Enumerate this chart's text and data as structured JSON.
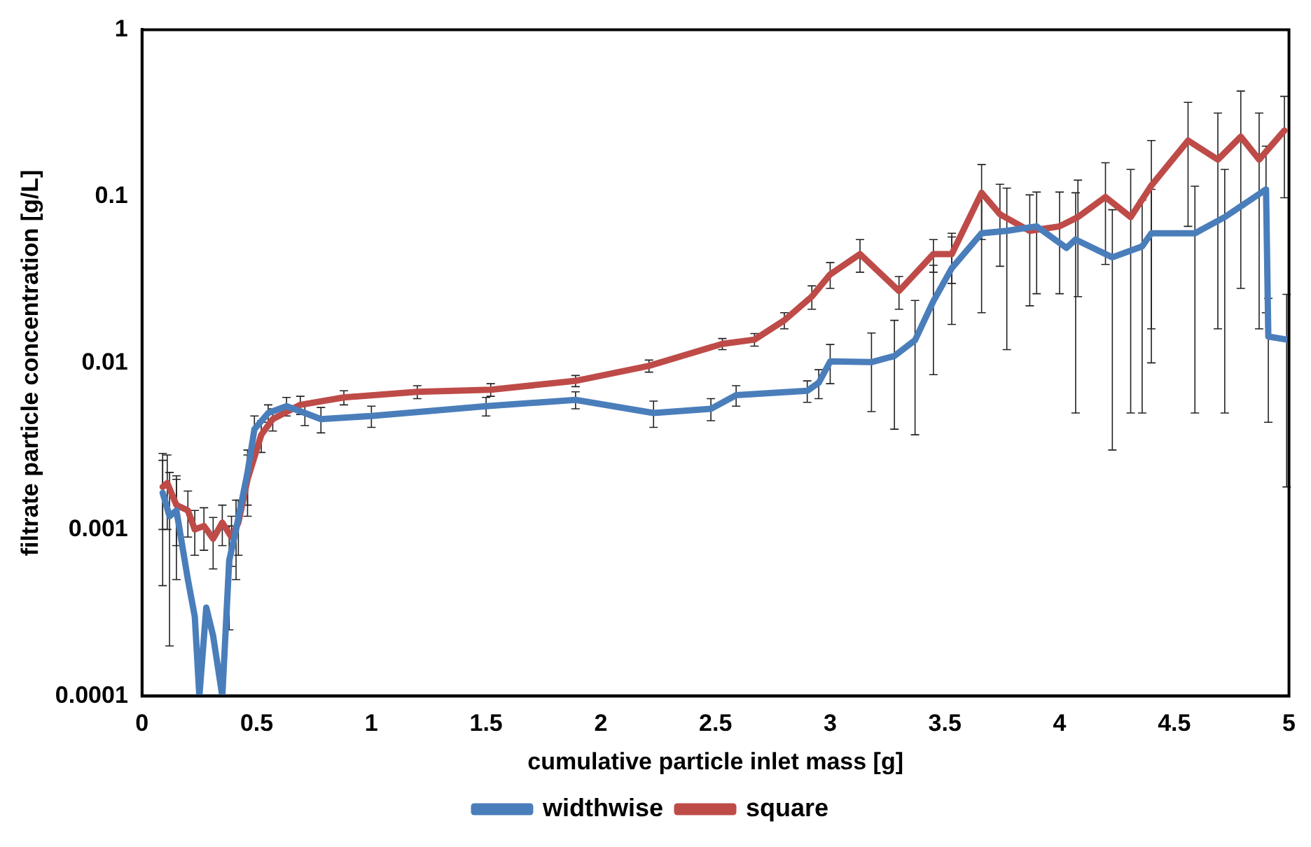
{
  "chart_data": {
    "type": "line",
    "xlabel": "cumulative particle inlet mass [g]",
    "ylabel": "filtrate particle concentration [g/L]",
    "log": "y",
    "xlim": [
      0,
      5
    ],
    "xticks": [
      0,
      0.5,
      1,
      1.5,
      2,
      2.5,
      3,
      3.5,
      4,
      4.5,
      5
    ],
    "ylim": [
      0.0001,
      1
    ],
    "yticks": [
      0.0001,
      0.001,
      0.01,
      0.1,
      1
    ],
    "grid": false,
    "legend": "bottom",
    "marker": "none",
    "line_style": "solid",
    "series": [
      {
        "name": "widthwise",
        "color": "#4a7ebb",
        "x": [
          0.09,
          0.12,
          0.15,
          0.2,
          0.23,
          0.25,
          0.28,
          0.31,
          0.35,
          0.38,
          0.41,
          0.46,
          0.49,
          0.55,
          0.63,
          0.71,
          0.78,
          1.0,
          1.5,
          1.89,
          2.23,
          2.48,
          2.59,
          2.9,
          2.95,
          3.0,
          3.18,
          3.28,
          3.37,
          3.45,
          3.53,
          3.66,
          3.77,
          3.9,
          4.03,
          4.07,
          4.23,
          4.36,
          4.4,
          4.59,
          4.72,
          4.9,
          4.91,
          4.99
        ],
        "values": [
          0.00166,
          0.0012,
          0.0013,
          0.0005,
          0.0003,
          0.0001,
          0.00034,
          0.00023,
          0.0001,
          0.00065,
          0.001,
          0.0022,
          0.004,
          0.005,
          0.0055,
          0.005,
          0.0046,
          0.0048,
          0.0055,
          0.006,
          0.005,
          0.0053,
          0.0064,
          0.0068,
          0.0076,
          0.0102,
          0.0101,
          0.011,
          0.0137,
          0.0235,
          0.037,
          0.06,
          0.062,
          0.066,
          0.049,
          0.055,
          0.043,
          0.05,
          0.06,
          0.06,
          0.075,
          0.11,
          0.0144,
          0.0138
        ],
        "errors": [
          0.0012,
          0.001,
          0.0008,
          null,
          null,
          null,
          null,
          null,
          null,
          0.0004,
          0.0005,
          0.0008,
          0.0008,
          0.0006,
          0.0007,
          0.0008,
          0.0008,
          0.0007,
          0.0007,
          0.0007,
          0.0009,
          0.0008,
          0.0009,
          0.001,
          0.0015,
          0.0027,
          0.005,
          0.007,
          0.01,
          0.015,
          0.02,
          0.04,
          0.05,
          0.04,
          null,
          0.05,
          0.04,
          0.045,
          0.05,
          0.055,
          0.07,
          0.09,
          0.01,
          0.012
        ]
      },
      {
        "name": "square",
        "color": "#be4b48",
        "x": [
          0.09,
          0.11,
          0.15,
          0.2,
          0.23,
          0.27,
          0.31,
          0.35,
          0.39,
          0.42,
          0.46,
          0.52,
          0.57,
          0.69,
          0.88,
          1.2,
          1.52,
          1.89,
          2.21,
          2.53,
          2.67,
          2.8,
          2.92,
          3.0,
          3.13,
          3.3,
          3.45,
          3.53,
          3.66,
          3.74,
          3.87,
          4.0,
          4.08,
          4.2,
          4.31,
          4.4,
          4.56,
          4.69,
          4.79,
          4.87,
          4.98
        ],
        "values": [
          0.0018,
          0.0019,
          0.0014,
          0.0013,
          0.001,
          0.00105,
          0.00088,
          0.0011,
          0.0009,
          0.0011,
          0.002,
          0.0037,
          0.0046,
          0.0056,
          0.0062,
          0.0067,
          0.0069,
          0.0078,
          0.0096,
          0.013,
          0.0138,
          0.018,
          0.025,
          0.034,
          0.045,
          0.027,
          0.045,
          0.045,
          0.105,
          0.078,
          0.062,
          0.066,
          0.075,
          0.099,
          0.075,
          0.116,
          0.216,
          0.166,
          0.228,
          0.166,
          0.248
        ],
        "errors": [
          0.0008,
          0.0009,
          0.0006,
          0.0004,
          0.0003,
          0.0003,
          0.0003,
          0.0003,
          0.0003,
          0.0004,
          0.0008,
          0.0008,
          0.0007,
          0.0007,
          0.0006,
          0.0006,
          0.0006,
          0.0006,
          0.0008,
          0.001,
          0.0012,
          0.002,
          0.004,
          0.006,
          0.01,
          0.006,
          0.01,
          0.015,
          0.05,
          0.04,
          0.04,
          0.04,
          0.05,
          0.06,
          0.07,
          0.1,
          0.15,
          0.15,
          0.2,
          0.15,
          0.15
        ]
      }
    ]
  }
}
